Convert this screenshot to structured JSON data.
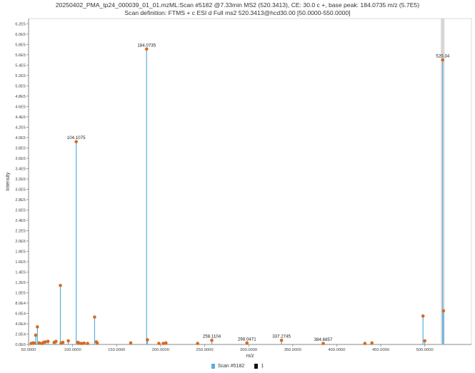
{
  "title_line1": "20250402_PMA_tp24_000039_01_01.mzML:Scan #5182 @7.33min MS2 (520.3413), CE: 30.0 c +, base peak: 184.0735 m/z (5.7E5)",
  "title_line2": "Scan definition: FTMS + c ESI d Full ms2 520.3413@hcd30.00 [50.0000-550.0000]",
  "colors": {
    "stem": "#5aaee0",
    "marker": "#d9691e",
    "axis": "#888888",
    "legend_black": "#111111"
  },
  "chart_data": {
    "type": "bar",
    "xlabel": "m/z",
    "ylabel": "Intensity",
    "xlim": [
      50,
      553
    ],
    "ylim": [
      0,
      630000
    ],
    "x_ticks": [
      {
        "value": 50,
        "label": "50.0000"
      },
      {
        "value": 100,
        "label": "100.0000"
      },
      {
        "value": 150,
        "label": "150.0000"
      },
      {
        "value": 200,
        "label": "200.0000"
      },
      {
        "value": 250,
        "label": "250.0000"
      },
      {
        "value": 300,
        "label": "300.0000"
      },
      {
        "value": 350,
        "label": "350.0000"
      },
      {
        "value": 400,
        "label": "400.0000"
      },
      {
        "value": 450,
        "label": "450.0000"
      },
      {
        "value": 500,
        "label": "500.0000"
      }
    ],
    "y_ticks": [
      {
        "value": 0,
        "label": "0.0E0"
      },
      {
        "value": 20000,
        "label": "2.0E4"
      },
      {
        "value": 40000,
        "label": "4.0E4"
      },
      {
        "value": 60000,
        "label": "6.0E4"
      },
      {
        "value": 80000,
        "label": "8.0E4"
      },
      {
        "value": 100000,
        "label": "1.0E5"
      },
      {
        "value": 120000,
        "label": "1.2E5"
      },
      {
        "value": 140000,
        "label": "1.4E5"
      },
      {
        "value": 160000,
        "label": "1.6E5"
      },
      {
        "value": 180000,
        "label": "1.8E5"
      },
      {
        "value": 200000,
        "label": "2.0E5"
      },
      {
        "value": 220000,
        "label": "2.2E5"
      },
      {
        "value": 240000,
        "label": "2.4E5"
      },
      {
        "value": 260000,
        "label": "2.6E5"
      },
      {
        "value": 280000,
        "label": "2.8E5"
      },
      {
        "value": 300000,
        "label": "3.0E5"
      },
      {
        "value": 320000,
        "label": "3.2E5"
      },
      {
        "value": 340000,
        "label": "3.4E5"
      },
      {
        "value": 360000,
        "label": "3.6E5"
      },
      {
        "value": 380000,
        "label": "3.8E5"
      },
      {
        "value": 400000,
        "label": "4.0E5"
      },
      {
        "value": 420000,
        "label": "4.2E5"
      },
      {
        "value": 440000,
        "label": "4.4E5"
      },
      {
        "value": 460000,
        "label": "4.6E5"
      },
      {
        "value": 480000,
        "label": "4.8E5"
      },
      {
        "value": 500000,
        "label": "5.0E5"
      },
      {
        "value": 520000,
        "label": "5.2E5"
      },
      {
        "value": 540000,
        "label": "5.4E5"
      },
      {
        "value": 560000,
        "label": "5.6E5"
      },
      {
        "value": 580000,
        "label": "5.8E5"
      },
      {
        "value": 600000,
        "label": "6.0E5"
      },
      {
        "value": 620000,
        "label": "6.2E5"
      }
    ],
    "peaks": [
      {
        "mz": 53.0,
        "intensity": 2000
      },
      {
        "mz": 55.1,
        "intensity": 3000
      },
      {
        "mz": 57.1,
        "intensity": 2500
      },
      {
        "mz": 58.1,
        "intensity": 18000
      },
      {
        "mz": 60.0,
        "intensity": 34000
      },
      {
        "mz": 62.0,
        "intensity": 3000
      },
      {
        "mz": 65.0,
        "intensity": 2000
      },
      {
        "mz": 67.1,
        "intensity": 4000
      },
      {
        "mz": 69.1,
        "intensity": 5000
      },
      {
        "mz": 72.1,
        "intensity": 6000
      },
      {
        "mz": 79.0,
        "intensity": 4000
      },
      {
        "mz": 81.1,
        "intensity": 6000
      },
      {
        "mz": 86.1,
        "intensity": 114000
      },
      {
        "mz": 87.0,
        "intensity": 3000
      },
      {
        "mz": 89.0,
        "intensity": 4000
      },
      {
        "mz": 95.1,
        "intensity": 7000
      },
      {
        "mz": 104.1075,
        "intensity": 392000,
        "label": "104.1075"
      },
      {
        "mz": 106.0,
        "intensity": 4000
      },
      {
        "mz": 107.0,
        "intensity": 3000
      },
      {
        "mz": 110.0,
        "intensity": 2000
      },
      {
        "mz": 113.0,
        "intensity": 2500
      },
      {
        "mz": 117.0,
        "intensity": 2000
      },
      {
        "mz": 124.9998,
        "intensity": 53000
      },
      {
        "mz": 127.0,
        "intensity": 5000
      },
      {
        "mz": 128.0,
        "intensity": 3000
      },
      {
        "mz": 166.0,
        "intensity": 3000
      },
      {
        "mz": 184.0735,
        "intensity": 571000,
        "label": "184.0735"
      },
      {
        "mz": 185.0,
        "intensity": 9000
      },
      {
        "mz": 198.0,
        "intensity": 2000
      },
      {
        "mz": 203.0,
        "intensity": 2000
      },
      {
        "mz": 206.0,
        "intensity": 3000
      },
      {
        "mz": 242.0,
        "intensity": 2000
      },
      {
        "mz": 258.1104,
        "intensity": 8000,
        "label": "258.1104"
      },
      {
        "mz": 298.0471,
        "intensity": 3000,
        "label": "298.0471"
      },
      {
        "mz": 337.2745,
        "intensity": 8000,
        "label": "337.2745"
      },
      {
        "mz": 384.6857,
        "intensity": 2000,
        "label": "384.6857"
      },
      {
        "mz": 432.0,
        "intensity": 2000
      },
      {
        "mz": 440.0,
        "intensity": 3000
      },
      {
        "mz": 498.0,
        "intensity": 55000
      },
      {
        "mz": 500.0,
        "intensity": 7000
      },
      {
        "mz": 520.34,
        "intensity": 550000,
        "label": "520.34"
      },
      {
        "mz": 521.3,
        "intensity": 65000
      }
    ]
  },
  "legend": [
    {
      "label": "Scan #5182",
      "color": "#5aaee0"
    },
    {
      "label": "1",
      "color": "#111111"
    }
  ]
}
